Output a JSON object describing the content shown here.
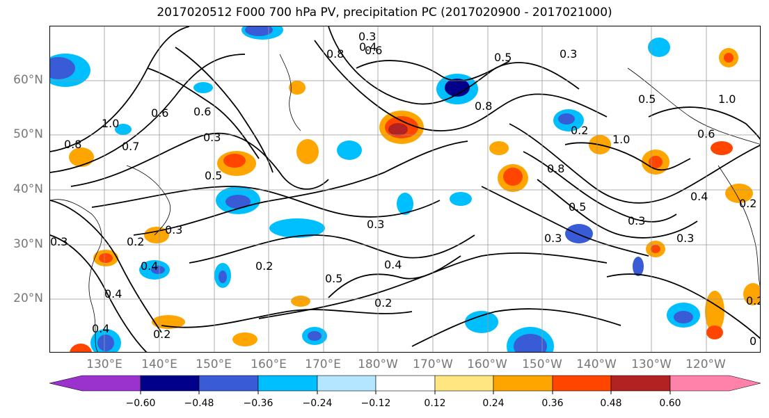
{
  "title": "2017020512 F000 700 hPa PV, precipitation PC (2017020900 - 2017021000)",
  "map": {
    "lat_labels": [
      "60°N",
      "50°N",
      "40°N",
      "30°N",
      "20°N"
    ],
    "lon_labels": [
      "130°E",
      "140°E",
      "150°E",
      "160°E",
      "170°E",
      "180°W",
      "170°W",
      "160°W",
      "150°W",
      "140°W",
      "130°W",
      "120°W"
    ],
    "contour_labels": [
      "0.3",
      "0.4",
      "0.6",
      "0.8",
      "0.5",
      "0.3",
      "0.2",
      "0.7",
      "0.8",
      "0.6",
      "1.0",
      "0.5",
      "0.3",
      "0.2",
      "0.4",
      "0.5",
      "0.2",
      "0.3",
      "0.4",
      "0.2",
      "0.3",
      "0.5",
      "0.8",
      "1.0",
      "0.6",
      "0.3",
      "0.2",
      "0.4",
      "0.3",
      "0.4",
      "0.2",
      "0.6",
      "0.4",
      "0.8",
      "0.2",
      "1.0",
      "0.3",
      "0.5",
      "0.3",
      "0"
    ]
  },
  "colorbar": {
    "colors": [
      "#9a32cd",
      "#00008b",
      "#3a5bd6",
      "#00bfff",
      "#b4e6ff",
      "#ffffff",
      "#ffe680",
      "#ffa500",
      "#ff4500",
      "#b22222",
      "#ff82ab"
    ],
    "tick_labels": [
      "−0.60",
      "−0.48",
      "−0.36",
      "−0.24",
      "−0.12",
      "0.12",
      "0.24",
      "0.36",
      "0.48",
      "0.60"
    ]
  }
}
